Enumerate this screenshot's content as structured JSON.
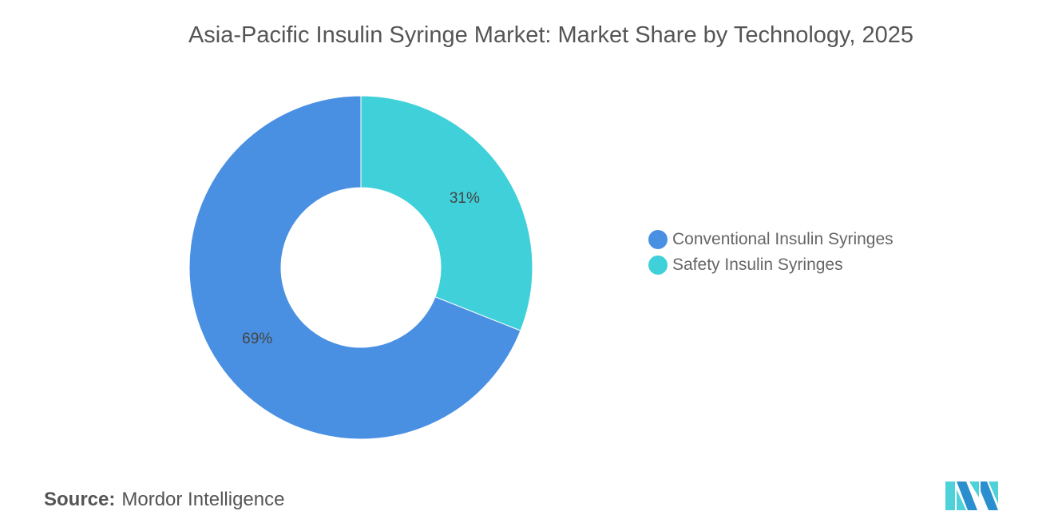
{
  "chart_data": {
    "type": "pie",
    "variant": "donut",
    "title": "Asia-Pacific Insulin Syringe Market: Market Share by Technology, 2025",
    "categories": [
      "Conventional Insulin Syringes",
      "Safety Insulin Syringes"
    ],
    "values": [
      69,
      31
    ],
    "value_labels": [
      "69%",
      "31%"
    ],
    "colors": [
      "#4a90e2",
      "#3fd0d9"
    ],
    "legend_position": "right"
  },
  "source": {
    "label": "Source:",
    "text": "Mordor Intelligence"
  },
  "logo": {
    "colors": [
      "#2a8fcf",
      "#4fd1d9"
    ]
  }
}
